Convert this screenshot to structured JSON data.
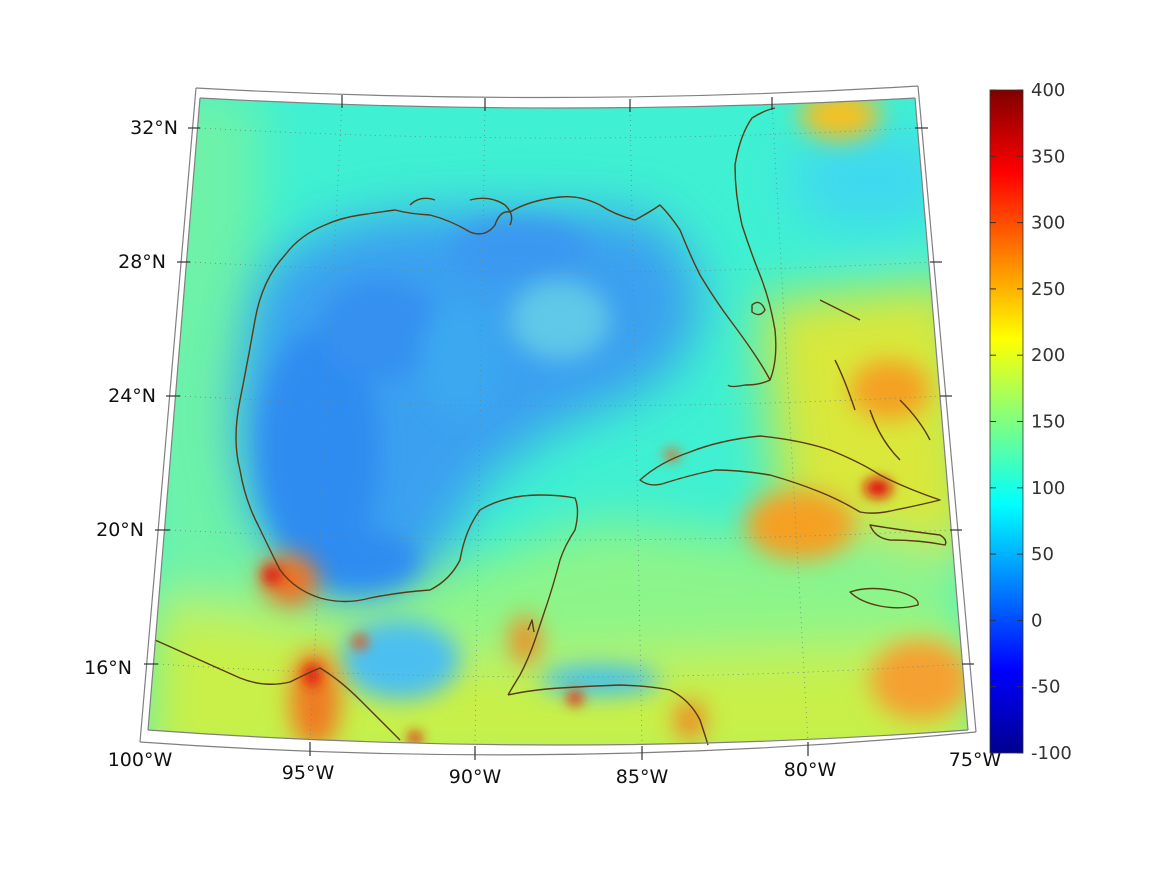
{
  "map": {
    "longitude_labels": [
      "100°W",
      "95°W",
      "90°W",
      "85°W",
      "80°W",
      "75°W"
    ],
    "latitude_labels": [
      "32°N",
      "28°N",
      "24°N",
      "20°N",
      "16°N"
    ],
    "region": "Gulf of Mexico and Caribbean",
    "coastline_color": "#5a3a12",
    "graticule_style": "dotted"
  },
  "colorbar": {
    "colormap": "jet",
    "min": -100,
    "max": 400,
    "tick_labels": [
      "400",
      "350",
      "300",
      "250",
      "200",
      "150",
      "100",
      "50",
      "0",
      "-50",
      "-100"
    ]
  }
}
